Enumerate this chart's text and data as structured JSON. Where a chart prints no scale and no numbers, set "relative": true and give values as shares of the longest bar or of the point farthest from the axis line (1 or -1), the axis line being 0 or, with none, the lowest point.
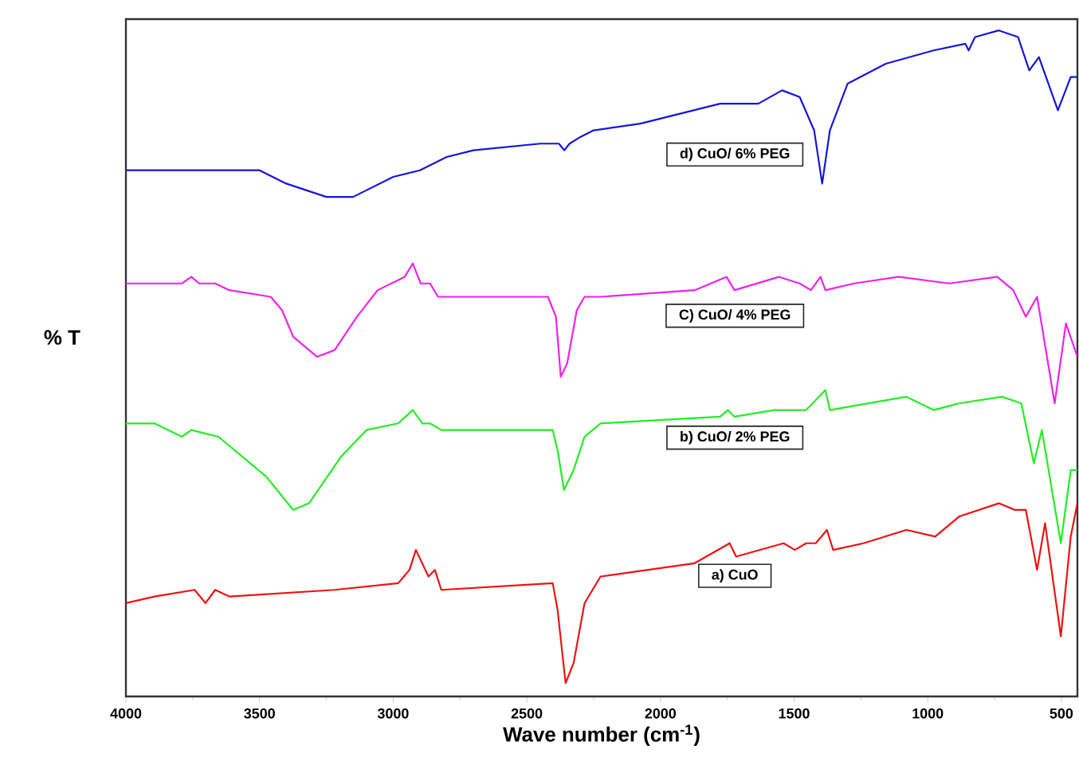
{
  "chart_data": {
    "type": "line",
    "relative": true,
    "xlabel": "Wave number (cm$^{-1}$)",
    "ylabel": "% T",
    "xlim": [
      4000,
      440
    ],
    "xticks": [
      4000,
      3500,
      3000,
      2500,
      2000,
      1500,
      1000,
      500
    ],
    "series": [
      {
        "name": "a) CuO",
        "color": "#ee1111",
        "x": [
          4000,
          3893,
          3743,
          3702,
          3666,
          3613,
          3219,
          2981,
          2939,
          2915,
          2868,
          2844,
          2820,
          2403,
          2385,
          2355,
          2325,
          2284,
          2224,
          1872,
          1741,
          1717,
          1539,
          1497,
          1455,
          1419,
          1377,
          1354,
          1240,
          1080,
          972,
          883,
          734,
          674,
          633,
          591,
          561,
          502,
          465,
          440
        ],
        "values": [
          0.14,
          0.15,
          0.16,
          0.14,
          0.16,
          0.15,
          0.16,
          0.17,
          0.19,
          0.22,
          0.18,
          0.19,
          0.16,
          0.17,
          0.13,
          0.02,
          0.05,
          0.14,
          0.18,
          0.2,
          0.23,
          0.21,
          0.23,
          0.22,
          0.23,
          0.23,
          0.25,
          0.22,
          0.23,
          0.25,
          0.24,
          0.27,
          0.29,
          0.28,
          0.28,
          0.19,
          0.26,
          0.09,
          0.24,
          0.29
        ]
      },
      {
        "name": "b) CuO/ 2% PEG",
        "color": "#22ee22",
        "x": [
          4000,
          3893,
          3791,
          3755,
          3654,
          3475,
          3374,
          3315,
          3195,
          3100,
          2981,
          2927,
          2891,
          2862,
          2820,
          2403,
          2385,
          2361,
          2325,
          2284,
          2224,
          1777,
          1748,
          1723,
          1574,
          1455,
          1383,
          1366,
          1080,
          978,
          883,
          722,
          650,
          603,
          573,
          502,
          465,
          440
        ],
        "values": [
          0.41,
          0.41,
          0.39,
          0.4,
          0.39,
          0.33,
          0.28,
          0.29,
          0.36,
          0.4,
          0.41,
          0.43,
          0.41,
          0.41,
          0.4,
          0.4,
          0.37,
          0.31,
          0.34,
          0.39,
          0.41,
          0.42,
          0.43,
          0.42,
          0.43,
          0.43,
          0.46,
          0.43,
          0.45,
          0.43,
          0.44,
          0.45,
          0.44,
          0.35,
          0.4,
          0.23,
          0.34,
          0.34
        ]
      },
      {
        "name": "C) CuO/ 4% PEG",
        "color": "#ee22ee",
        "x": [
          4000,
          3851,
          3791,
          3755,
          3726,
          3666,
          3613,
          3458,
          3416,
          3374,
          3285,
          3219,
          3136,
          3058,
          2957,
          2927,
          2897,
          2862,
          2832,
          2421,
          2391,
          2373,
          2349,
          2313,
          2284,
          2224,
          1872,
          1753,
          1723,
          1556,
          1479,
          1437,
          1401,
          1383,
          1276,
          1109,
          919,
          740,
          680,
          633,
          591,
          525,
          483,
          440
        ],
        "values": [
          0.62,
          0.62,
          0.62,
          0.63,
          0.62,
          0.62,
          0.61,
          0.6,
          0.58,
          0.54,
          0.51,
          0.52,
          0.57,
          0.61,
          0.63,
          0.65,
          0.62,
          0.62,
          0.6,
          0.6,
          0.57,
          0.48,
          0.5,
          0.58,
          0.6,
          0.6,
          0.61,
          0.63,
          0.61,
          0.63,
          0.62,
          0.61,
          0.63,
          0.61,
          0.62,
          0.63,
          0.62,
          0.63,
          0.61,
          0.57,
          0.6,
          0.44,
          0.56,
          0.51
        ]
      },
      {
        "name": "d) CuO/ 6% PEG",
        "color": "#1515dd",
        "x": [
          4000,
          3672,
          3500,
          3400,
          3250,
          3150,
          3000,
          2900,
          2800,
          2700,
          2450,
          2380,
          2360,
          2340,
          2300,
          2250,
          2075,
          1777,
          1748,
          1634,
          1545,
          1479,
          1425,
          1395,
          1366,
          1300,
          1157,
          978,
          859,
          847,
          823,
          734,
          662,
          620,
          584,
          513,
          465,
          440
        ],
        "values": [
          0.79,
          0.79,
          0.79,
          0.77,
          0.75,
          0.75,
          0.78,
          0.79,
          0.81,
          0.82,
          0.83,
          0.83,
          0.82,
          0.83,
          0.84,
          0.85,
          0.86,
          0.89,
          0.89,
          0.89,
          0.91,
          0.9,
          0.85,
          0.77,
          0.85,
          0.92,
          0.95,
          0.97,
          0.98,
          0.97,
          0.99,
          1.0,
          0.99,
          0.94,
          0.96,
          0.88,
          0.93,
          0.93
        ]
      }
    ]
  }
}
